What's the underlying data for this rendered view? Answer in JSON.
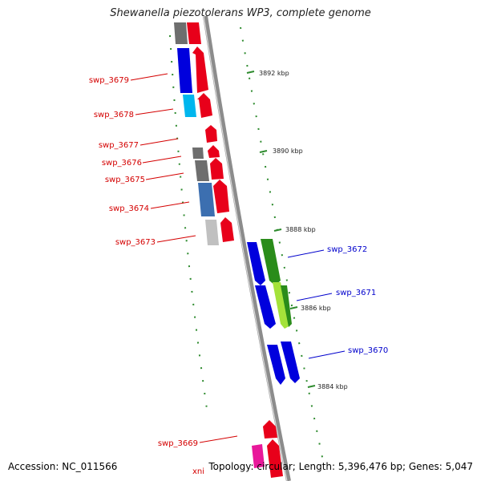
{
  "title": "Shewanella piezotolerans WP3, complete genome",
  "footer": {
    "accession": "Accession: NC_011566",
    "summary": "Topology: circular; Length: 5,396,476 bp; Genes: 5,047"
  },
  "colors": {
    "backbone": "#8c8c8c",
    "tick": "#2e8b2e",
    "reverse_label": "#d40000",
    "forward_label": "#0000cc"
  },
  "scale_ticks": [
    "3892 kbp",
    "3890 kbp",
    "3888 kbp",
    "3886 kbp",
    "3884 kbp"
  ],
  "genes_reverse": [
    {
      "label": "swp_3679"
    },
    {
      "label": "swp_3678"
    },
    {
      "label": "swp_3677"
    },
    {
      "label": "swp_3676"
    },
    {
      "label": "swp_3675"
    },
    {
      "label": "swp_3674"
    },
    {
      "label": "swp_3673"
    },
    {
      "label": "swp_3669"
    },
    {
      "label": "xni"
    }
  ],
  "genes_forward": [
    {
      "label": "swp_3672"
    },
    {
      "label": "swp_3671"
    },
    {
      "label": "swp_3670"
    }
  ]
}
